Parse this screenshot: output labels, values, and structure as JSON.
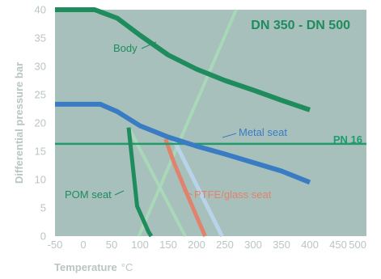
{
  "chart_data": {
    "type": "line",
    "title": "DN 350 - DN 500",
    "xlabel": "Temperature",
    "xunit": "°C",
    "ylabel": "Differential pressure bar",
    "xlim": [
      -50,
      500
    ],
    "ylim": [
      0,
      40
    ],
    "x_ticks": [
      "-50",
      "0",
      "50",
      "100",
      "150",
      "200",
      "250",
      "300",
      "350",
      "400",
      "450",
      "500"
    ],
    "y_ticks": [
      "0",
      "5",
      "10",
      "15",
      "20",
      "25",
      "30",
      "35",
      "40"
    ],
    "grid": false,
    "legend": "none",
    "colors": {
      "plot_bg": "#a7c0bc",
      "body": "#1e8c5c",
      "metal_seat": "#3a7cc4",
      "pn16": "#1e9c6c",
      "pom_seat": "#1e8c5c",
      "ptfe_glass": "#e0836d",
      "ptfe_carbon": "#b9d3ea",
      "pale_green": "#a9dcb8",
      "axis_text": "#b9c6c3"
    },
    "series": [
      {
        "name": "Body",
        "color_key": "body",
        "x": [
          -50,
          20,
          60,
          100,
          150,
          200,
          250,
          300,
          350,
          400
        ],
        "y": [
          40,
          40,
          38.5,
          35.5,
          32,
          29.5,
          27.5,
          25.8,
          24,
          22.3
        ]
      },
      {
        "name": "Metal seat",
        "color_key": "metal_seat",
        "x": [
          -50,
          30,
          60,
          100,
          150,
          200,
          250,
          300,
          350,
          400
        ],
        "y": [
          23.3,
          23.3,
          22,
          19.5,
          17.5,
          15.9,
          14.5,
          13,
          11.5,
          9.5
        ]
      },
      {
        "name": "PN 16",
        "color_key": "pn16",
        "x": [
          -50,
          500
        ],
        "y": [
          16.3,
          16.3
        ]
      },
      {
        "name": "POM seat",
        "color_key": "pom_seat",
        "x": [
          80,
          95,
          115,
          120
        ],
        "y": [
          19.2,
          5.3,
          0.8,
          0
        ]
      },
      {
        "name": "PTFE/glass seat",
        "color_key": "ptfe_glass",
        "x": [
          145,
          160,
          185,
          215
        ],
        "y": [
          17.2,
          13,
          7,
          0
        ]
      },
      {
        "name": "",
        "color_key": "ptfe_carbon",
        "x": [
          160,
          245
        ],
        "y": [
          17,
          0
        ]
      },
      {
        "name": "",
        "color_key": "pale_green",
        "x": [
          80,
          180
        ],
        "y": [
          19.2,
          0
        ]
      },
      {
        "name": "",
        "color_key": "pale_green",
        "x": [
          98,
          270
        ],
        "y": [
          0,
          40
        ]
      }
    ],
    "annotations": [
      {
        "text": "Body",
        "series": "Body"
      },
      {
        "text": "Metal seat",
        "series": "Metal seat"
      },
      {
        "text": "PN 16",
        "series": "PN 16"
      },
      {
        "text": "POM seat",
        "series": "POM seat"
      },
      {
        "text": "PTFE/glass seat",
        "series": "PTFE/glass seat"
      }
    ]
  }
}
